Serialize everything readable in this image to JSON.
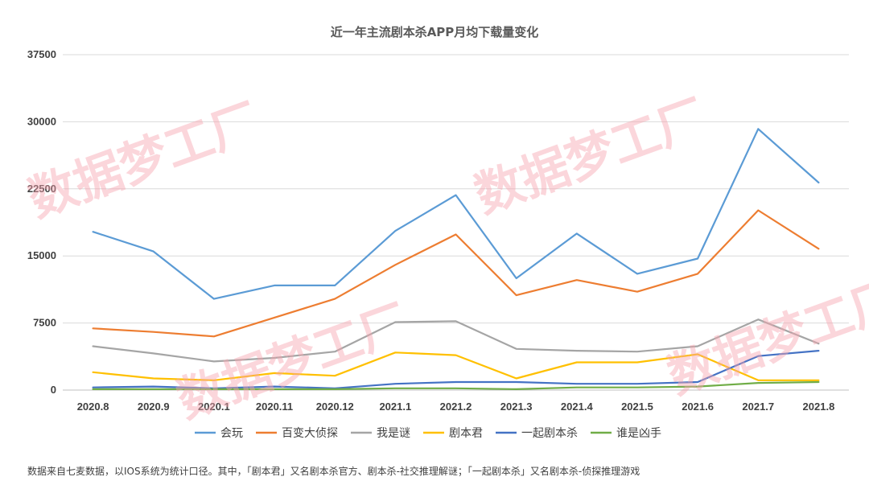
{
  "chart_data": {
    "type": "line",
    "title": "近一年主流剧本杀APP月均下载量变化",
    "categories": [
      "2020.8",
      "2020.9",
      "2020.1",
      "2020.11",
      "2020.12",
      "2021.1",
      "2021.2",
      "2021.3",
      "2021.4",
      "2021.5",
      "2021.6",
      "2021.7",
      "2021.8"
    ],
    "y_ticks": [
      "0",
      "7500",
      "15000",
      "22500",
      "30000",
      "37500"
    ],
    "ylim": [
      0,
      37500
    ],
    "grid": true,
    "legend_position": "bottom",
    "series": [
      {
        "name": "会玩",
        "color": "#5b9bd5",
        "values": [
          17700,
          15500,
          10200,
          11700,
          11700,
          17800,
          21800,
          12500,
          17500,
          13000,
          14700,
          29200,
          23200
        ]
      },
      {
        "name": "百变大侦探",
        "color": "#ed7d31",
        "values": [
          6900,
          6500,
          6000,
          8100,
          10200,
          14000,
          17400,
          10600,
          12300,
          11000,
          13000,
          20100,
          15800
        ]
      },
      {
        "name": "我是谜",
        "color": "#a5a5a5",
        "values": [
          4900,
          4100,
          3200,
          3600,
          4300,
          7600,
          7700,
          4600,
          4400,
          4300,
          4900,
          7900,
          5200
        ]
      },
      {
        "name": "剧本君",
        "color": "#ffc000",
        "values": [
          2000,
          1300,
          1100,
          1900,
          1600,
          4200,
          3900,
          1300,
          3100,
          3100,
          4000,
          1100,
          1100
        ]
      },
      {
        "name": "一起剧本杀",
        "color": "#4472c4",
        "values": [
          300,
          400,
          200,
          400,
          200,
          700,
          900,
          900,
          700,
          700,
          900,
          3800,
          4400
        ]
      },
      {
        "name": "谁是凶手",
        "color": "#70ad47",
        "values": [
          100,
          100,
          100,
          100,
          100,
          200,
          200,
          100,
          300,
          300,
          400,
          800,
          900
        ]
      }
    ]
  },
  "watermark_text": "数据梦工厂",
  "footnote": "数据来自七麦数据，以IOS系统为统计口径。其中，「剧本君」又名剧本杀官方、剧本杀-社交推理解谜；「一起剧本杀」又名剧本杀-侦探推理游戏"
}
